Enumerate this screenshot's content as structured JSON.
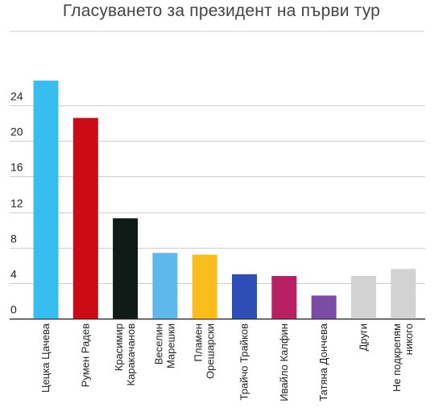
{
  "chart_data": {
    "type": "bar",
    "title": "Гласуването за президент на първи тур",
    "xlabel": "",
    "ylabel": "",
    "ylim": [
      0,
      28
    ],
    "grid": true,
    "legend": "none",
    "yticks": [
      {
        "value": 0,
        "label": "0"
      },
      {
        "value": 4,
        "label": "4"
      },
      {
        "value": 8,
        "label": "8"
      },
      {
        "value": 12,
        "label": "12"
      },
      {
        "value": 16,
        "label": "16"
      },
      {
        "value": 20,
        "label": "20"
      },
      {
        "value": 24,
        "label": "24"
      }
    ],
    "categories": [
      [
        "Цецка Цачева"
      ],
      [
        "Румен Радев"
      ],
      [
        "Красимир",
        "Каракачанов"
      ],
      [
        "Веселин",
        "Марешки"
      ],
      [
        "Пламен",
        "Орешарски"
      ],
      [
        "Трайчо Трайков"
      ],
      [
        "Ивайло Калфин"
      ],
      [
        "Татяна Дончева"
      ],
      [
        "Други"
      ],
      [
        "Не подкрепям",
        "никого"
      ]
    ],
    "values": [
      26.8,
      22.6,
      11.3,
      7.4,
      7.2,
      5.0,
      4.8,
      2.6,
      4.8,
      5.6
    ],
    "colors": [
      "#38bdf0",
      "#cc0a15",
      "#101a16",
      "#60b8ea",
      "#fbbd1e",
      "#2f4eb5",
      "#b82064",
      "#7a4ca6",
      "#d2d2d2",
      "#d2d2d2"
    ]
  }
}
